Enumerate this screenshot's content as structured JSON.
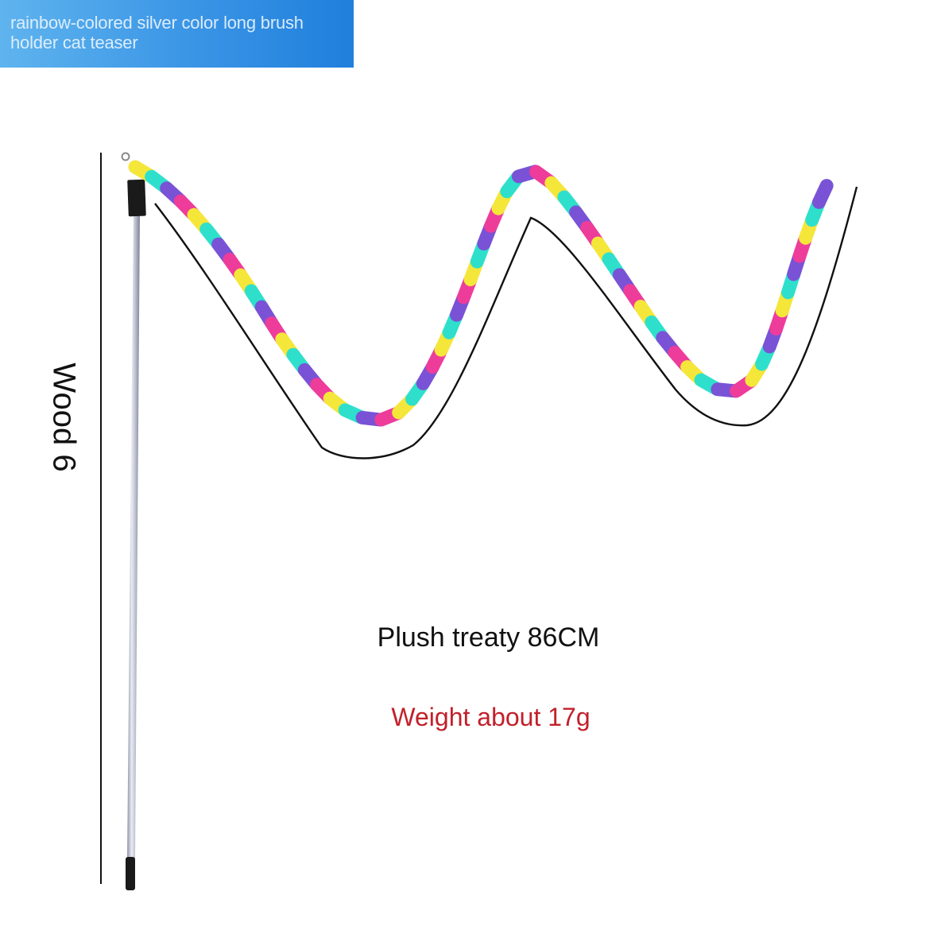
{
  "banner": {
    "text": "rainbow-colored silver color long brush holder cat teaser",
    "gradient_colors": [
      "#5fb4ee",
      "#1f7fdc"
    ]
  },
  "labels": {
    "wood": "Wood 6",
    "length": "Plush treaty 86CM",
    "weight": "Weight about 17g"
  },
  "colors": {
    "background": "#ffffff",
    "weight_text": "#c2202b",
    "rainbow_segments": [
      "#f5e63a",
      "#2ee0cc",
      "#7a52d6",
      "#ee3c9b"
    ],
    "rod": "#c8ccd8",
    "rod_cap": "#1a1a1a"
  },
  "icons": {
    "rod": "silver-rod-icon",
    "feather_string": "rainbow-plush-string-icon"
  }
}
